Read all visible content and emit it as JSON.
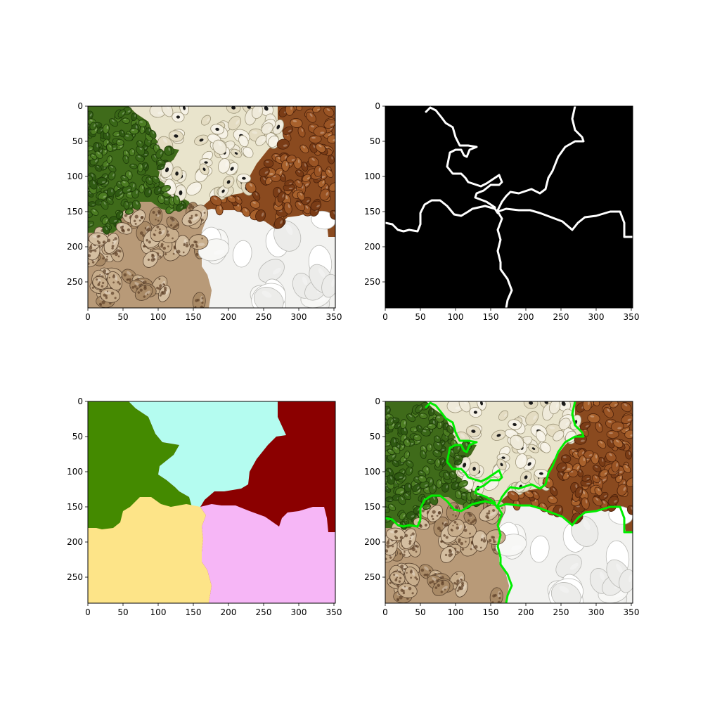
{
  "figure": {
    "panels": [
      {
        "name": "original-beans-image",
        "content": "beans-photo",
        "xlim": [
          0,
          352
        ],
        "ylim": [
          0,
          287
        ],
        "xticks": [
          "0",
          "50",
          "100",
          "150",
          "200",
          "250",
          "300",
          "350"
        ],
        "yticks": [
          "0",
          "50",
          "100",
          "150",
          "200",
          "250"
        ]
      },
      {
        "name": "boundary-mask",
        "content": "boundary",
        "xlim": [
          0,
          352
        ],
        "ylim": [
          0,
          287
        ],
        "xticks": [
          "0",
          "50",
          "100",
          "150",
          "200",
          "250",
          "300",
          "350"
        ],
        "yticks": [
          "0",
          "50",
          "100",
          "150",
          "200",
          "250"
        ]
      },
      {
        "name": "segmentation-labels",
        "content": "labels",
        "xlim": [
          0,
          352
        ],
        "ylim": [
          0,
          287
        ],
        "xticks": [
          "0",
          "50",
          "100",
          "150",
          "200",
          "250",
          "300",
          "350"
        ],
        "yticks": [
          "0",
          "50",
          "100",
          "150",
          "200",
          "250"
        ]
      },
      {
        "name": "overlay-boundaries",
        "content": "overlay",
        "xlim": [
          0,
          352
        ],
        "ylim": [
          0,
          287
        ],
        "xticks": [
          "0",
          "50",
          "100",
          "150",
          "200",
          "250",
          "300",
          "350"
        ],
        "yticks": [
          "0",
          "50",
          "100",
          "150",
          "200",
          "250"
        ]
      }
    ],
    "region_colors": {
      "green_beans": "#448a00",
      "white_black_eyed": "#b4fcf0",
      "brown_beans": "#8b0000",
      "pinto_beans": "#fde488",
      "large_white": "#f6b6f6"
    },
    "bean_colors": {
      "green_beans": "#3f6b1a",
      "white_black_eyed": "#e9e4cc",
      "brown_beans": "#8a4a1f",
      "pinto_beans": "#b89a78",
      "large_white": "#f2f2f0"
    },
    "boundary_color": "#ffffff",
    "overlay_boundary_color": "#00ee00"
  }
}
